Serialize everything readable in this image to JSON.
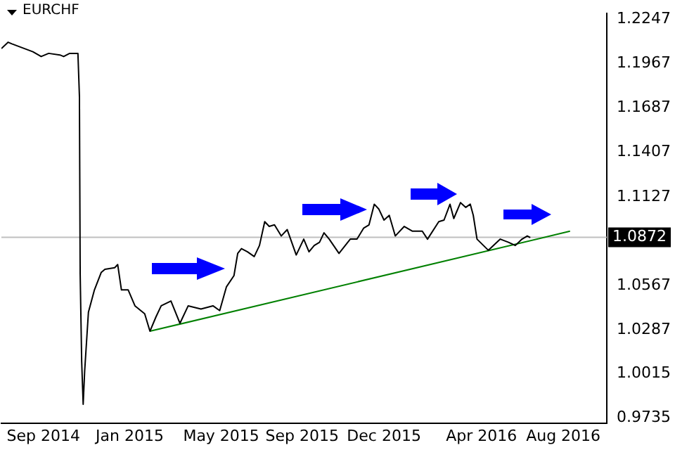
{
  "chart_data": {
    "type": "line",
    "title": "EURCHF",
    "marker": "none",
    "line_style": "solid",
    "grid": false,
    "legend": false,
    "xlim": [
      "2014-07-28",
      "2016-10-12"
    ],
    "xticks": [
      {
        "value": "2014-09-22",
        "label": "Sep 2014"
      },
      {
        "value": "2015-01-15",
        "label": "Jan 2015"
      },
      {
        "value": "2015-05-17",
        "label": "May 2015"
      },
      {
        "value": "2015-09-02",
        "label": "Sep 2015"
      },
      {
        "value": "2015-12-20",
        "label": "Dec 2015"
      },
      {
        "value": "2016-04-28",
        "label": "Apr 2016"
      },
      {
        "value": "2016-08-15",
        "label": "Aug 2016"
      }
    ],
    "ylim": [
      0.9702,
      1.2281
    ],
    "yticks": [
      0.9735,
      1.0015,
      1.0287,
      1.0567,
      1.1127,
      1.1407,
      1.1687,
      1.1967,
      1.2247
    ],
    "ref_lines": [
      {
        "axis": "y",
        "value": 1.0872,
        "label": "1.0872",
        "color": "#c0c0c0"
      }
    ],
    "series": [
      {
        "color": "#000000",
        "x": [
          "2014-07-28",
          "2014-08-06",
          "2014-08-11",
          "2014-09-08",
          "2014-09-19",
          "2014-09-29",
          "2014-10-14",
          "2014-10-19",
          "2014-10-27",
          "2014-11-07",
          "2014-11-09",
          "2014-11-10",
          "2014-11-12",
          "2014-11-14",
          "2014-11-16",
          "2014-11-21",
          "2014-11-29",
          "2014-12-08",
          "2014-12-13",
          "2014-12-26",
          "2014-12-30",
          "2015-01-04",
          "2015-01-13",
          "2015-01-22",
          "2015-02-04",
          "2015-02-11",
          "2015-02-19",
          "2015-02-26",
          "2015-03-11",
          "2015-03-23",
          "2015-04-03",
          "2015-04-20",
          "2015-05-06",
          "2015-05-15",
          "2015-05-24",
          "2015-06-03",
          "2015-06-08",
          "2015-06-13",
          "2015-06-21",
          "2015-06-30",
          "2015-07-07",
          "2015-07-14",
          "2015-07-20",
          "2015-07-27",
          "2015-08-05",
          "2015-08-13",
          "2015-08-25",
          "2015-09-04",
          "2015-09-11",
          "2015-09-18",
          "2015-09-25",
          "2015-10-01",
          "2015-10-08",
          "2015-10-21",
          "2015-11-05",
          "2015-11-14",
          "2015-11-23",
          "2015-11-30",
          "2015-12-07",
          "2015-12-13",
          "2015-12-20",
          "2015-12-27",
          "2016-01-04",
          "2016-01-16",
          "2016-01-27",
          "2016-02-09",
          "2016-02-16",
          "2016-03-02",
          "2016-03-09",
          "2016-03-17",
          "2016-03-22",
          "2016-03-31",
          "2016-04-07",
          "2016-04-13",
          "2016-04-17",
          "2016-04-22",
          "2016-05-07",
          "2016-05-23",
          "2016-06-03",
          "2016-06-12",
          "2016-06-21",
          "2016-06-28",
          "2016-07-02"
        ],
        "values": [
          1.206,
          1.21,
          1.209,
          1.204,
          1.201,
          1.203,
          1.202,
          1.201,
          1.203,
          1.203,
          1.176,
          1.064,
          1.009,
          0.982,
          1.003,
          1.04,
          1.054,
          1.065,
          1.067,
          1.068,
          1.07,
          1.054,
          1.054,
          1.044,
          1.039,
          1.028,
          1.037,
          1.044,
          1.047,
          1.033,
          1.044,
          1.042,
          1.044,
          1.041,
          1.056,
          1.063,
          1.077,
          1.08,
          1.078,
          1.075,
          1.082,
          1.097,
          1.094,
          1.095,
          1.088,
          1.092,
          1.076,
          1.086,
          1.078,
          1.082,
          1.084,
          1.09,
          1.086,
          1.077,
          1.086,
          1.086,
          1.093,
          1.095,
          1.108,
          1.105,
          1.098,
          1.101,
          1.088,
          1.094,
          1.091,
          1.091,
          1.086,
          1.097,
          1.098,
          1.108,
          1.099,
          1.109,
          1.106,
          1.108,
          1.101,
          1.086,
          1.079,
          1.086,
          1.084,
          1.082,
          1.086,
          1.088,
          1.087
        ]
      },
      {
        "color": "#008000",
        "x": [
          "2015-02-11",
          "2016-08-24"
        ],
        "values": [
          1.028,
          1.091
        ]
      }
    ]
  }
}
